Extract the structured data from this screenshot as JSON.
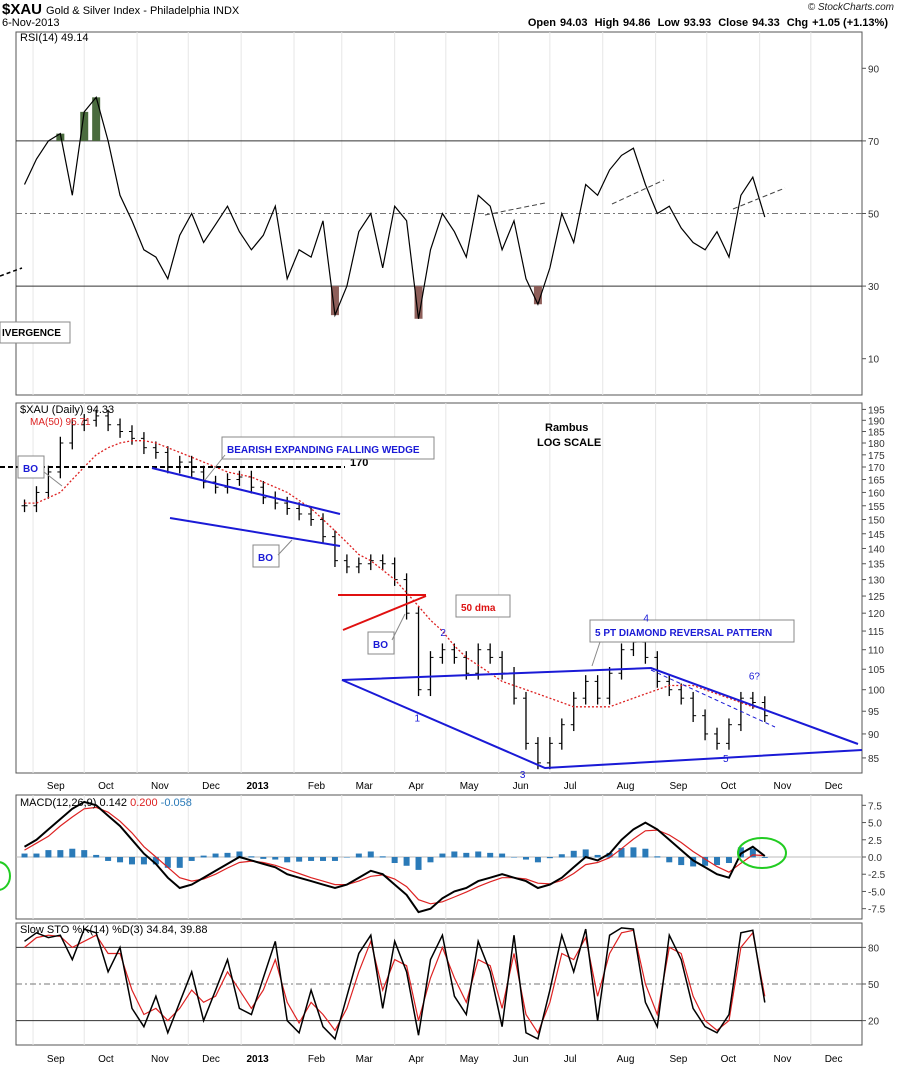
{
  "header": {
    "symbol": "$XAU",
    "name": "Gold & Silver Index - Philadelphia",
    "exchange": "INDX",
    "date": "6-Nov-2013",
    "brand": "© StockCharts.com",
    "open_label": "Open",
    "open": "94.03",
    "high_label": "High",
    "high": "94.86",
    "low_label": "Low",
    "low": "93.93",
    "close_label": "Close",
    "close": "94.33",
    "chg_label": "Chg",
    "chg": "+1.05 (+1.13%)"
  },
  "chart_data": [
    {
      "type": "line",
      "panel": "rsi",
      "legend": "RSI(14) 49.14",
      "ylim": [
        0,
        100
      ],
      "yticks": [
        10,
        30,
        50,
        70,
        90
      ],
      "reference_lines": [
        30,
        50,
        70
      ],
      "x": [
        "2012-08-27",
        "2012-09-03",
        "2012-09-10",
        "2012-09-17",
        "2012-09-24",
        "2012-10-01",
        "2012-10-08",
        "2012-10-15",
        "2012-10-22",
        "2012-10-29",
        "2012-11-05",
        "2012-11-12",
        "2012-11-19",
        "2012-11-26",
        "2012-12-03",
        "2012-12-10",
        "2012-12-17",
        "2012-12-24",
        "2012-12-31",
        "2013-01-07",
        "2013-01-14",
        "2013-01-21",
        "2013-01-28",
        "2013-02-04",
        "2013-02-11",
        "2013-02-18",
        "2013-02-25",
        "2013-03-04",
        "2013-03-11",
        "2013-03-18",
        "2013-03-25",
        "2013-04-01",
        "2013-04-08",
        "2013-04-15",
        "2013-04-22",
        "2013-04-29",
        "2013-05-06",
        "2013-05-13",
        "2013-05-20",
        "2013-05-27",
        "2013-06-03",
        "2013-06-10",
        "2013-06-17",
        "2013-06-24",
        "2013-07-01",
        "2013-07-08",
        "2013-07-15",
        "2013-07-22",
        "2013-07-29",
        "2013-08-05",
        "2013-08-12",
        "2013-08-19",
        "2013-08-26",
        "2013-09-02",
        "2013-09-09",
        "2013-09-16",
        "2013-09-23",
        "2013-09-30",
        "2013-10-07",
        "2013-10-14",
        "2013-10-21",
        "2013-10-28",
        "2013-11-04"
      ],
      "values": [
        58,
        65,
        70,
        72,
        55,
        78,
        82,
        70,
        55,
        48,
        40,
        38,
        32,
        44,
        50,
        42,
        47,
        52,
        45,
        40,
        44,
        52,
        32,
        40,
        38,
        48,
        22,
        30,
        45,
        50,
        35,
        52,
        48,
        21,
        40,
        50,
        45,
        38,
        55,
        52,
        40,
        48,
        32,
        25,
        35,
        50,
        42,
        58,
        55,
        62,
        66,
        68,
        58,
        50,
        52,
        46,
        42,
        40,
        45,
        38,
        55,
        60,
        49
      ],
      "fill_above": 70,
      "fill_below": 30,
      "annotations": [
        "IVERGENCE"
      ]
    },
    {
      "type": "candlestick",
      "panel": "price",
      "legend": "$XAU (Daily) 94.33",
      "scale": "log",
      "title": "Rambus",
      "subtitle": "LOG SCALE",
      "ylim": [
        82,
        198
      ],
      "yticks": [
        85,
        90,
        95,
        100,
        105,
        110,
        115,
        120,
        125,
        130,
        135,
        140,
        145,
        150,
        155,
        160,
        165,
        170,
        175,
        180,
        185,
        190,
        195
      ],
      "x": [
        "2012-08-27",
        "2012-09-03",
        "2012-09-10",
        "2012-09-17",
        "2012-09-24",
        "2012-10-01",
        "2012-10-08",
        "2012-10-15",
        "2012-10-22",
        "2012-10-29",
        "2012-11-05",
        "2012-11-12",
        "2012-11-19",
        "2012-11-26",
        "2012-12-03",
        "2012-12-10",
        "2012-12-17",
        "2012-12-24",
        "2012-12-31",
        "2013-01-07",
        "2013-01-14",
        "2013-01-21",
        "2013-01-28",
        "2013-02-04",
        "2013-02-11",
        "2013-02-18",
        "2013-02-25",
        "2013-03-04",
        "2013-03-11",
        "2013-03-18",
        "2013-03-25",
        "2013-04-01",
        "2013-04-08",
        "2013-04-15",
        "2013-04-22",
        "2013-04-29",
        "2013-05-06",
        "2013-05-13",
        "2013-05-20",
        "2013-05-27",
        "2013-06-03",
        "2013-06-10",
        "2013-06-17",
        "2013-06-24",
        "2013-07-01",
        "2013-07-08",
        "2013-07-15",
        "2013-07-22",
        "2013-07-29",
        "2013-08-05",
        "2013-08-12",
        "2013-08-19",
        "2013-08-26",
        "2013-09-02",
        "2013-09-09",
        "2013-09-16",
        "2013-09-23",
        "2013-09-30",
        "2013-10-07",
        "2013-10-14",
        "2013-10-21",
        "2013-10-28",
        "2013-11-04"
      ],
      "values": [
        155,
        160,
        168,
        180,
        188,
        190,
        192,
        188,
        185,
        182,
        178,
        176,
        170,
        172,
        168,
        164,
        162,
        165,
        166,
        162,
        158,
        156,
        154,
        152,
        150,
        144,
        136,
        134,
        135,
        136,
        135,
        130,
        120,
        100,
        108,
        110,
        108,
        104,
        110,
        108,
        104,
        98,
        88,
        84,
        88,
        92,
        98,
        102,
        98,
        104,
        110,
        112,
        108,
        102,
        100,
        98,
        94,
        90,
        88,
        92,
        98,
        97,
        94
      ],
      "ma_legend": "MA(50) 95.71",
      "ma50": [
        156,
        156,
        158,
        160,
        165,
        170,
        175,
        178,
        180,
        181,
        181,
        180,
        178,
        176,
        174,
        172,
        170,
        168,
        167,
        166,
        164,
        162,
        160,
        157,
        154,
        150,
        146,
        142,
        138,
        136,
        133,
        130,
        126,
        122,
        118,
        115,
        111,
        108,
        106,
        104,
        102,
        101,
        100,
        99,
        98,
        97,
        96,
        96,
        96,
        96,
        97,
        98,
        99,
        100,
        101,
        101,
        101,
        100,
        99,
        98,
        97,
        96,
        95.71
      ],
      "level_line": {
        "value": 170,
        "label": "170"
      },
      "annotations": [
        {
          "text": "BO"
        },
        {
          "text": "BEARISH EXPANDING FALLING WEDGE"
        },
        {
          "text": "BO"
        },
        {
          "text": "BO"
        },
        {
          "text": "50 dma"
        },
        {
          "text": "5 PT DIAMOND REVERSAL PATTERN"
        }
      ],
      "points": [
        {
          "label": "1",
          "date": "2013-04-15",
          "value": 100
        },
        {
          "label": "2",
          "date": "2013-04-29",
          "value": 112
        },
        {
          "label": "3",
          "date": "2013-06-24",
          "value": 83
        },
        {
          "label": "4",
          "date": "2013-08-26",
          "value": 116
        },
        {
          "label": "5",
          "date": "2013-10-14",
          "value": 87
        },
        {
          "label": "6?",
          "date": "2013-10-28",
          "value": 101
        }
      ],
      "x_tick_labels": [
        "Sep",
        "Oct",
        "Nov",
        "Dec",
        "2013",
        "Feb",
        "Mar",
        "Apr",
        "May",
        "Jun",
        "Jul",
        "Aug",
        "Sep",
        "Oct",
        "Nov",
        "Dec"
      ]
    },
    {
      "type": "line",
      "panel": "macd",
      "legend_name": "MACD(12,26,9)",
      "legend_macd": "0.142",
      "legend_signal": "0.200",
      "legend_hist": "-0.058",
      "ylim": [
        -9,
        9
      ],
      "yticks": [
        7.5,
        5.0,
        2.5,
        0.0,
        -2.5,
        -5.0,
        -7.5
      ],
      "yticks_labels": [
        "7.5",
        "5.0",
        "2.5",
        "0.0",
        "-2.5",
        "-5.0",
        "-7.5"
      ],
      "x": [
        "2012-08-27",
        "2012-09-03",
        "2012-09-10",
        "2012-09-17",
        "2012-09-24",
        "2012-10-01",
        "2012-10-08",
        "2012-10-15",
        "2012-10-22",
        "2012-10-29",
        "2012-11-05",
        "2012-11-12",
        "2012-11-19",
        "2012-11-26",
        "2012-12-03",
        "2012-12-10",
        "2012-12-17",
        "2012-12-24",
        "2012-12-31",
        "2013-01-07",
        "2013-01-14",
        "2013-01-21",
        "2013-01-28",
        "2013-02-04",
        "2013-02-11",
        "2013-02-18",
        "2013-02-25",
        "2013-03-04",
        "2013-03-11",
        "2013-03-18",
        "2013-03-25",
        "2013-04-01",
        "2013-04-08",
        "2013-04-15",
        "2013-04-22",
        "2013-04-29",
        "2013-05-06",
        "2013-05-13",
        "2013-05-20",
        "2013-05-27",
        "2013-06-03",
        "2013-06-10",
        "2013-06-17",
        "2013-06-24",
        "2013-07-01",
        "2013-07-08",
        "2013-07-15",
        "2013-07-22",
        "2013-07-29",
        "2013-08-05",
        "2013-08-12",
        "2013-08-19",
        "2013-08-26",
        "2013-09-02",
        "2013-09-09",
        "2013-09-16",
        "2013-09-23",
        "2013-09-30",
        "2013-10-07",
        "2013-10-14",
        "2013-10-21",
        "2013-10-28",
        "2013-11-04"
      ],
      "macd": [
        1.5,
        2.5,
        4.0,
        5.5,
        7.0,
        8.0,
        7.5,
        6.0,
        4.5,
        2.5,
        0.5,
        -1.0,
        -3.0,
        -4.5,
        -4.0,
        -3.0,
        -2.0,
        -1.0,
        0.0,
        -0.5,
        -1.0,
        -1.5,
        -2.5,
        -3.0,
        -3.5,
        -4.0,
        -4.5,
        -4.0,
        -3.0,
        -2.0,
        -2.5,
        -4.0,
        -5.5,
        -8.0,
        -7.5,
        -6.0,
        -5.0,
        -4.5,
        -3.5,
        -3.0,
        -2.5,
        -3.0,
        -3.5,
        -4.5,
        -4.0,
        -3.0,
        -1.5,
        0.0,
        -0.5,
        0.5,
        2.5,
        4.0,
        5.0,
        4.0,
        2.5,
        1.0,
        -0.5,
        -1.5,
        -2.5,
        -3.0,
        0.5,
        1.5,
        0.142
      ],
      "signal": [
        1.0,
        2.0,
        3.0,
        4.5,
        5.8,
        7.0,
        7.2,
        6.5,
        5.2,
        3.5,
        1.5,
        0.0,
        -1.5,
        -3.0,
        -3.5,
        -3.2,
        -2.5,
        -1.6,
        -0.8,
        -0.6,
        -0.8,
        -1.2,
        -1.8,
        -2.4,
        -3.0,
        -3.5,
        -4.0,
        -4.0,
        -3.5,
        -2.8,
        -2.6,
        -3.2,
        -4.3,
        -6.2,
        -6.8,
        -6.5,
        -5.8,
        -5.1,
        -4.3,
        -3.6,
        -3.0,
        -3.0,
        -3.2,
        -3.8,
        -3.9,
        -3.4,
        -2.4,
        -1.1,
        -0.8,
        -0.1,
        1.2,
        2.6,
        3.8,
        3.9,
        3.2,
        2.1,
        0.8,
        -0.3,
        -1.4,
        -2.2,
        -0.9,
        0.3,
        0.2
      ],
      "annotations": []
    },
    {
      "type": "line",
      "panel": "stochastic",
      "legend": "Slow STO %K(14) %D(3) 34.84, 39.88",
      "ylim": [
        0,
        100
      ],
      "yticks": [
        20,
        50,
        80
      ],
      "x": [
        "2012-08-27",
        "2012-09-03",
        "2012-09-10",
        "2012-09-17",
        "2012-09-24",
        "2012-10-01",
        "2012-10-08",
        "2012-10-15",
        "2012-10-22",
        "2012-10-29",
        "2012-11-05",
        "2012-11-12",
        "2012-11-19",
        "2012-11-26",
        "2012-12-03",
        "2012-12-10",
        "2012-12-17",
        "2012-12-24",
        "2012-12-31",
        "2013-01-07",
        "2013-01-14",
        "2013-01-21",
        "2013-01-28",
        "2013-02-04",
        "2013-02-11",
        "2013-02-18",
        "2013-02-25",
        "2013-03-04",
        "2013-03-11",
        "2013-03-18",
        "2013-03-25",
        "2013-04-01",
        "2013-04-08",
        "2013-04-15",
        "2013-04-22",
        "2013-04-29",
        "2013-05-06",
        "2013-05-13",
        "2013-05-20",
        "2013-05-27",
        "2013-06-03",
        "2013-06-10",
        "2013-06-17",
        "2013-06-24",
        "2013-07-01",
        "2013-07-08",
        "2013-07-15",
        "2013-07-22",
        "2013-07-29",
        "2013-08-05",
        "2013-08-12",
        "2013-08-19",
        "2013-08-26",
        "2013-09-02",
        "2013-09-09",
        "2013-09-16",
        "2013-09-23",
        "2013-09-30",
        "2013-10-07",
        "2013-10-14",
        "2013-10-21",
        "2013-10-28",
        "2013-11-04"
      ],
      "k": [
        85,
        92,
        88,
        90,
        70,
        95,
        92,
        60,
        80,
        30,
        15,
        40,
        10,
        35,
        60,
        20,
        45,
        70,
        30,
        25,
        55,
        85,
        20,
        10,
        45,
        15,
        5,
        40,
        75,
        90,
        30,
        85,
        60,
        8,
        70,
        90,
        40,
        25,
        85,
        60,
        15,
        90,
        10,
        5,
        45,
        90,
        60,
        95,
        20,
        90,
        96,
        95,
        35,
        15,
        90,
        70,
        30,
        15,
        10,
        25,
        92,
        94,
        34.84
      ],
      "d": [
        80,
        88,
        90,
        89,
        80,
        85,
        90,
        75,
        75,
        45,
        25,
        30,
        20,
        30,
        45,
        35,
        40,
        60,
        45,
        30,
        45,
        70,
        35,
        18,
        35,
        25,
        12,
        30,
        60,
        85,
        45,
        70,
        65,
        20,
        55,
        80,
        55,
        35,
        70,
        65,
        30,
        75,
        25,
        10,
        35,
        75,
        70,
        88,
        40,
        75,
        92,
        94,
        50,
        25,
        80,
        75,
        40,
        20,
        12,
        20,
        80,
        92,
        39.88
      ]
    }
  ]
}
